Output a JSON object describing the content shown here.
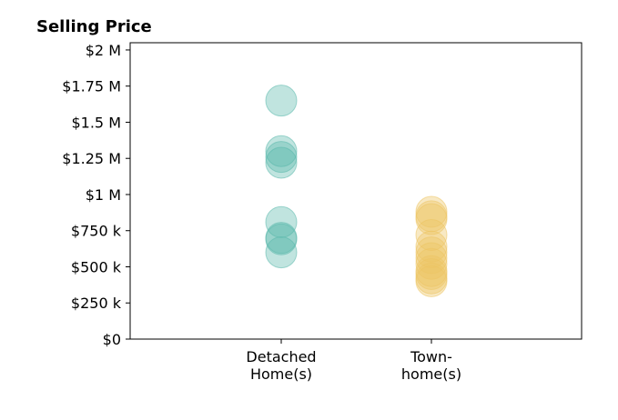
{
  "chart_data": {
    "type": "scatter",
    "title": "Selling Price",
    "xlabel": "",
    "ylabel": "",
    "categories": [
      [
        "Detached",
        "Home(s)"
      ],
      [
        "Town-",
        "home(s)"
      ]
    ],
    "ylim": [
      0,
      2050000
    ],
    "y_ticks": [
      {
        "value": 0,
        "label": "$0"
      },
      {
        "value": 250000,
        "label": "$250 k"
      },
      {
        "value": 500000,
        "label": "$500 k"
      },
      {
        "value": 750000,
        "label": "$750 k"
      },
      {
        "value": 1000000,
        "label": "$1 M"
      },
      {
        "value": 1250000,
        "label": "$1.25 M"
      },
      {
        "value": 1500000,
        "label": "$1.5 M"
      },
      {
        "value": 1750000,
        "label": "$1.75 M"
      },
      {
        "value": 2000000,
        "label": "$2 M"
      }
    ],
    "grid": false,
    "series": [
      {
        "category": "Detached Home(s)",
        "color": "#5ab8ab",
        "values": [
          1650000,
          1300000,
          1260000,
          1220000,
          810000,
          700000,
          690000,
          600000
        ]
      },
      {
        "category": "Town-home(s)",
        "color": "#ecc463",
        "values": [
          880000,
          850000,
          830000,
          720000,
          640000,
          600000,
          560000,
          520000,
          470000,
          450000,
          420000,
          400000
        ]
      }
    ]
  }
}
